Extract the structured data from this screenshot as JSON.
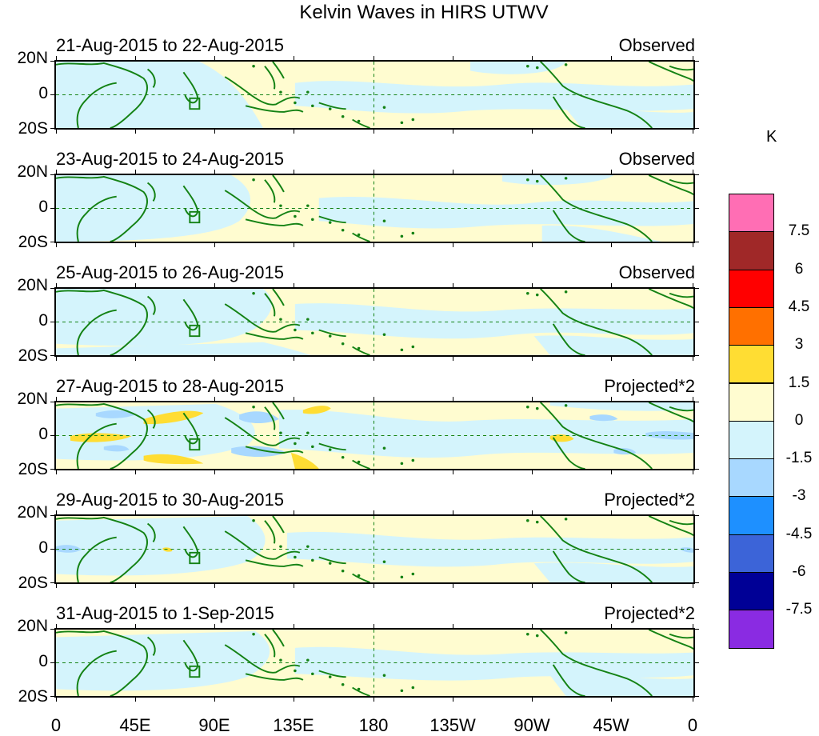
{
  "title": "Kelvin Waves in HIRS UTWV",
  "panels": [
    {
      "date_range": "21-Aug-2015 to 22-Aug-2015",
      "type": "Observed"
    },
    {
      "date_range": "23-Aug-2015 to 24-Aug-2015",
      "type": "Observed"
    },
    {
      "date_range": "25-Aug-2015 to 26-Aug-2015",
      "type": "Observed"
    },
    {
      "date_range": "27-Aug-2015 to 28-Aug-2015",
      "type": "Projected*2"
    },
    {
      "date_range": "29-Aug-2015 to 30-Aug-2015",
      "type": "Projected*2"
    },
    {
      "date_range": "31-Aug-2015 to 1-Sep-2015",
      "type": "Projected*2"
    }
  ],
  "lat_labels": [
    "20N",
    "0",
    "20S"
  ],
  "lon_labels": [
    "0",
    "45E",
    "90E",
    "135E",
    "180",
    "135W",
    "90W",
    "45W",
    "0"
  ],
  "colorbar": {
    "unit": "K",
    "colors": [
      "#ff6eb4",
      "#a02828",
      "#ff0000",
      "#ff7000",
      "#ffdd33",
      "#fffcd0",
      "#d4f4fc",
      "#a8d8ff",
      "#1e90ff",
      "#3c64d8",
      "#000096",
      "#8a2be2"
    ],
    "labels": [
      "7.5",
      "6",
      "4.5",
      "3",
      "1.5",
      "0",
      "-1.5",
      "-3",
      "-4.5",
      "-6",
      "-7.5"
    ]
  },
  "colors": {
    "land": "#148214",
    "positive": "#fffcd0",
    "negative": "#d4f4fc"
  }
}
